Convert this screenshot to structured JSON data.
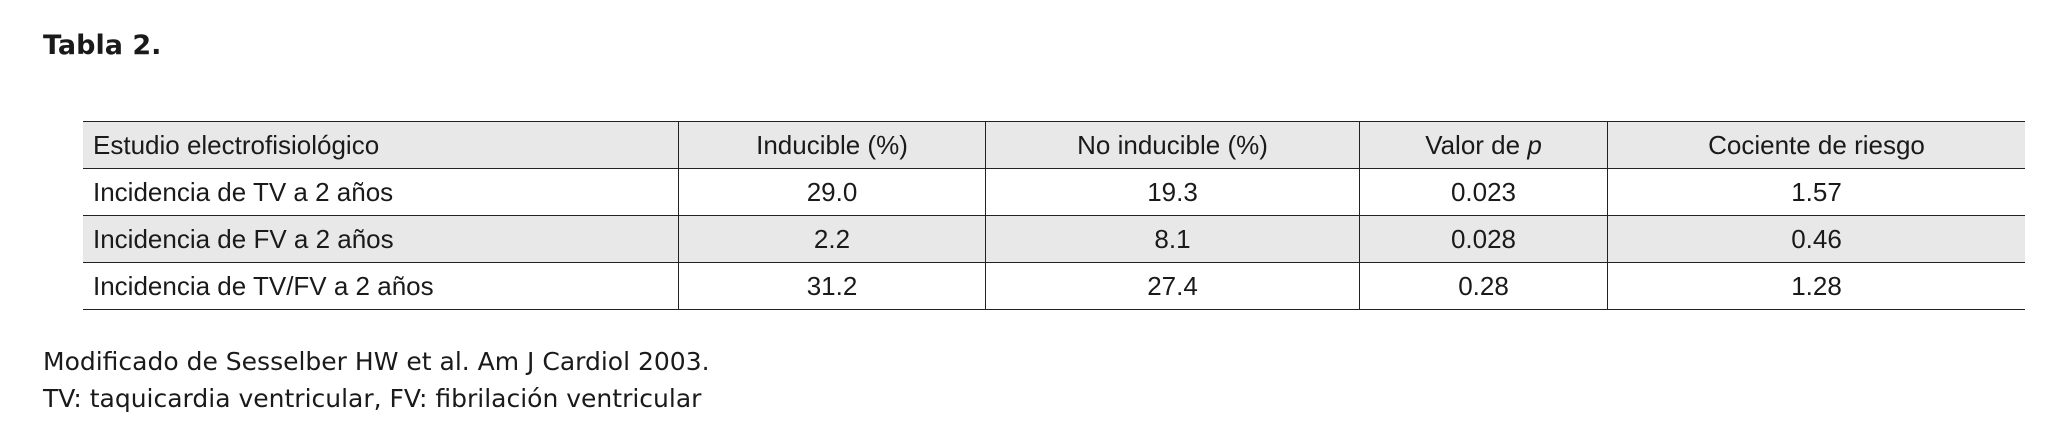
{
  "title": "Tabla 2.",
  "table": {
    "header": [
      "Estudio electrofisiológico",
      "Inducible (%)",
      "No inducible (%)",
      {
        "text": "Valor de",
        "emphasis": "p"
      },
      "Cociente de riesgo"
    ],
    "rows": [
      [
        "Incidencia de TV a 2 años",
        "29.0",
        "19.3",
        "0.023",
        "1.57"
      ],
      [
        "Incidencia de FV a 2 años",
        "2.2",
        "8.1",
        "0.028",
        "0.46"
      ],
      [
        "Incidencia de TV/FV a 2 años",
        "31.2",
        "27.4",
        "0.28",
        "1.28"
      ]
    ]
  },
  "notes": [
    "Modificado de Sesselber HW et al. Am J Cardiol 2003.",
    "TV: taquicardia ventricular, FV: fibrilación ventricular"
  ]
}
